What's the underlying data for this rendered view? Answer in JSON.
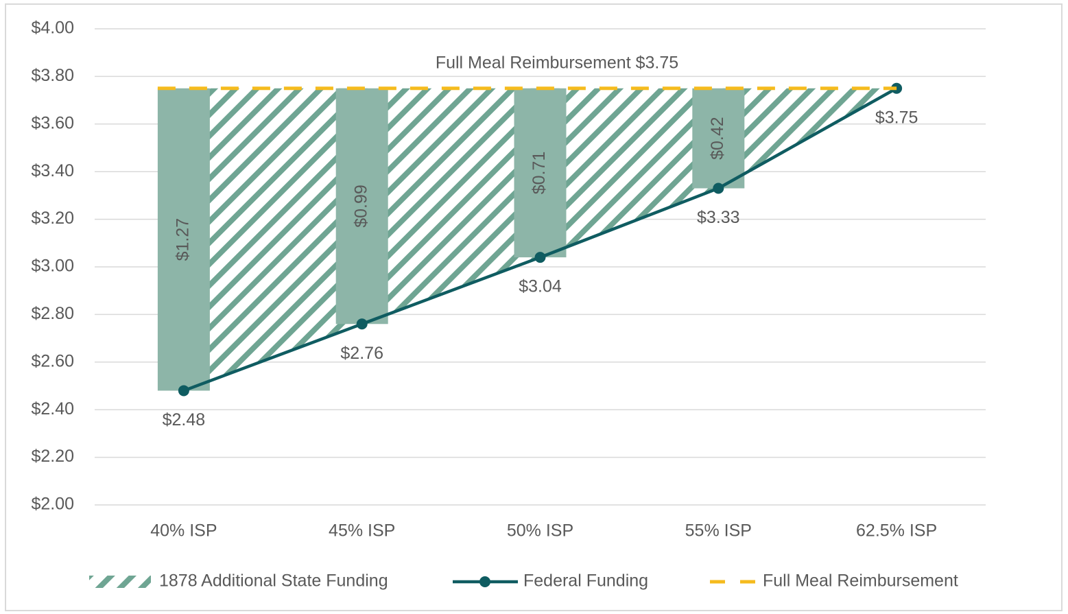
{
  "chart_data": {
    "type": "combo",
    "annotation": "Full Meal Reimbursement $3.75",
    "categories": [
      "40% ISP",
      "45% ISP",
      "50% ISP",
      "55% ISP",
      "62.5% ISP"
    ],
    "series": [
      {
        "name": "1878 Additional State Funding",
        "type": "bar",
        "stacked_on": 1,
        "color": "#8db5a8",
        "hatch_color": "#6fa593",
        "values": [
          1.27,
          0.99,
          0.71,
          0.42,
          0
        ],
        "value_labels": [
          "$1.27",
          "$0.99",
          "$0.71",
          "$0.42",
          null
        ]
      },
      {
        "name": "Federal Funding",
        "type": "line",
        "color": "#0f5c61",
        "values": [
          2.48,
          2.76,
          3.04,
          3.33,
          3.75
        ],
        "value_labels": [
          "$2.48",
          "$2.76",
          "$3.04",
          "$3.33",
          "$3.75"
        ]
      },
      {
        "name": "Full Meal Reimbursement",
        "type": "dashed",
        "color": "#f5bb1e",
        "values": [
          3.75,
          3.75,
          3.75,
          3.75,
          3.75
        ]
      }
    ],
    "ylim": [
      2,
      4
    ],
    "yticks": [
      {
        "value": 2,
        "label": "$2.00"
      },
      {
        "value": 2.2,
        "label": "$2.20"
      },
      {
        "value": 2.4,
        "label": "$2.40"
      },
      {
        "value": 2.6,
        "label": "$2.60"
      },
      {
        "value": 2.8,
        "label": "$2.80"
      },
      {
        "value": 3,
        "label": "$3.00"
      },
      {
        "value": 3.2,
        "label": "$3.20"
      },
      {
        "value": 3.4,
        "label": "$3.40"
      },
      {
        "value": 3.6,
        "label": "$3.60"
      },
      {
        "value": 3.8,
        "label": "$3.80"
      },
      {
        "value": 4,
        "label": "$4.00"
      }
    ],
    "grid": true,
    "legend": "bottom"
  }
}
